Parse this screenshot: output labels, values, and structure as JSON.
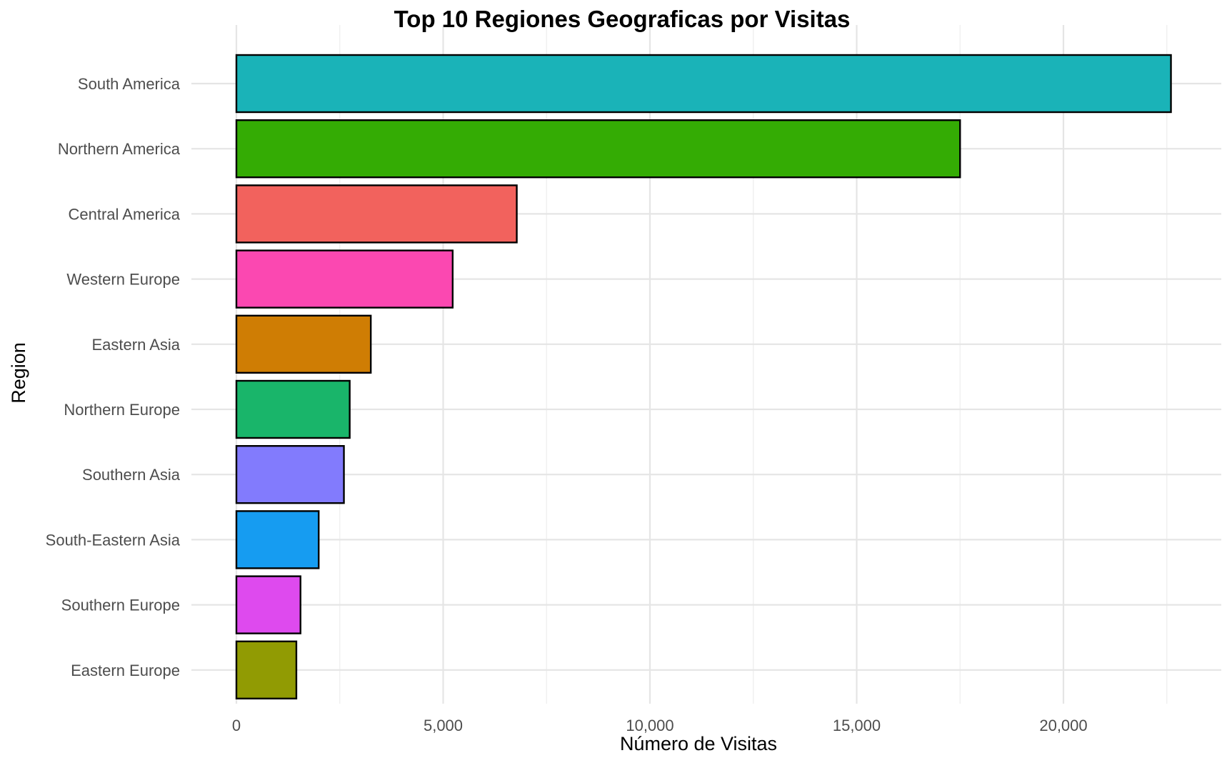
{
  "chart_data": {
    "type": "bar",
    "orientation": "horizontal",
    "title": "Top 10 Regiones Geograficas por Visitas",
    "xlabel": "Número de Visitas",
    "ylabel": "Region",
    "xlim": [
      0,
      23800
    ],
    "x_ticks": [
      0,
      5000,
      10000,
      15000,
      20000
    ],
    "x_tick_labels": [
      "0",
      "5,000",
      "10,000",
      "15,000",
      "20,000"
    ],
    "grid": true,
    "legend": "none",
    "categories": [
      "South America",
      "Northern America",
      "Central America",
      "Western Europe",
      "Eastern Asia",
      "Northern Europe",
      "Southern Asia",
      "South-Eastern Asia",
      "Southern Europe",
      "Eastern Europe"
    ],
    "values": [
      22600,
      17500,
      6780,
      5230,
      3250,
      2740,
      2600,
      1990,
      1550,
      1450
    ],
    "colors": [
      "#1ab3b8",
      "#34ac04",
      "#f2625d",
      "#fb48b1",
      "#cf7d04",
      "#19b56a",
      "#827bfd",
      "#169cf1",
      "#de4aee",
      "#919b03"
    ]
  }
}
